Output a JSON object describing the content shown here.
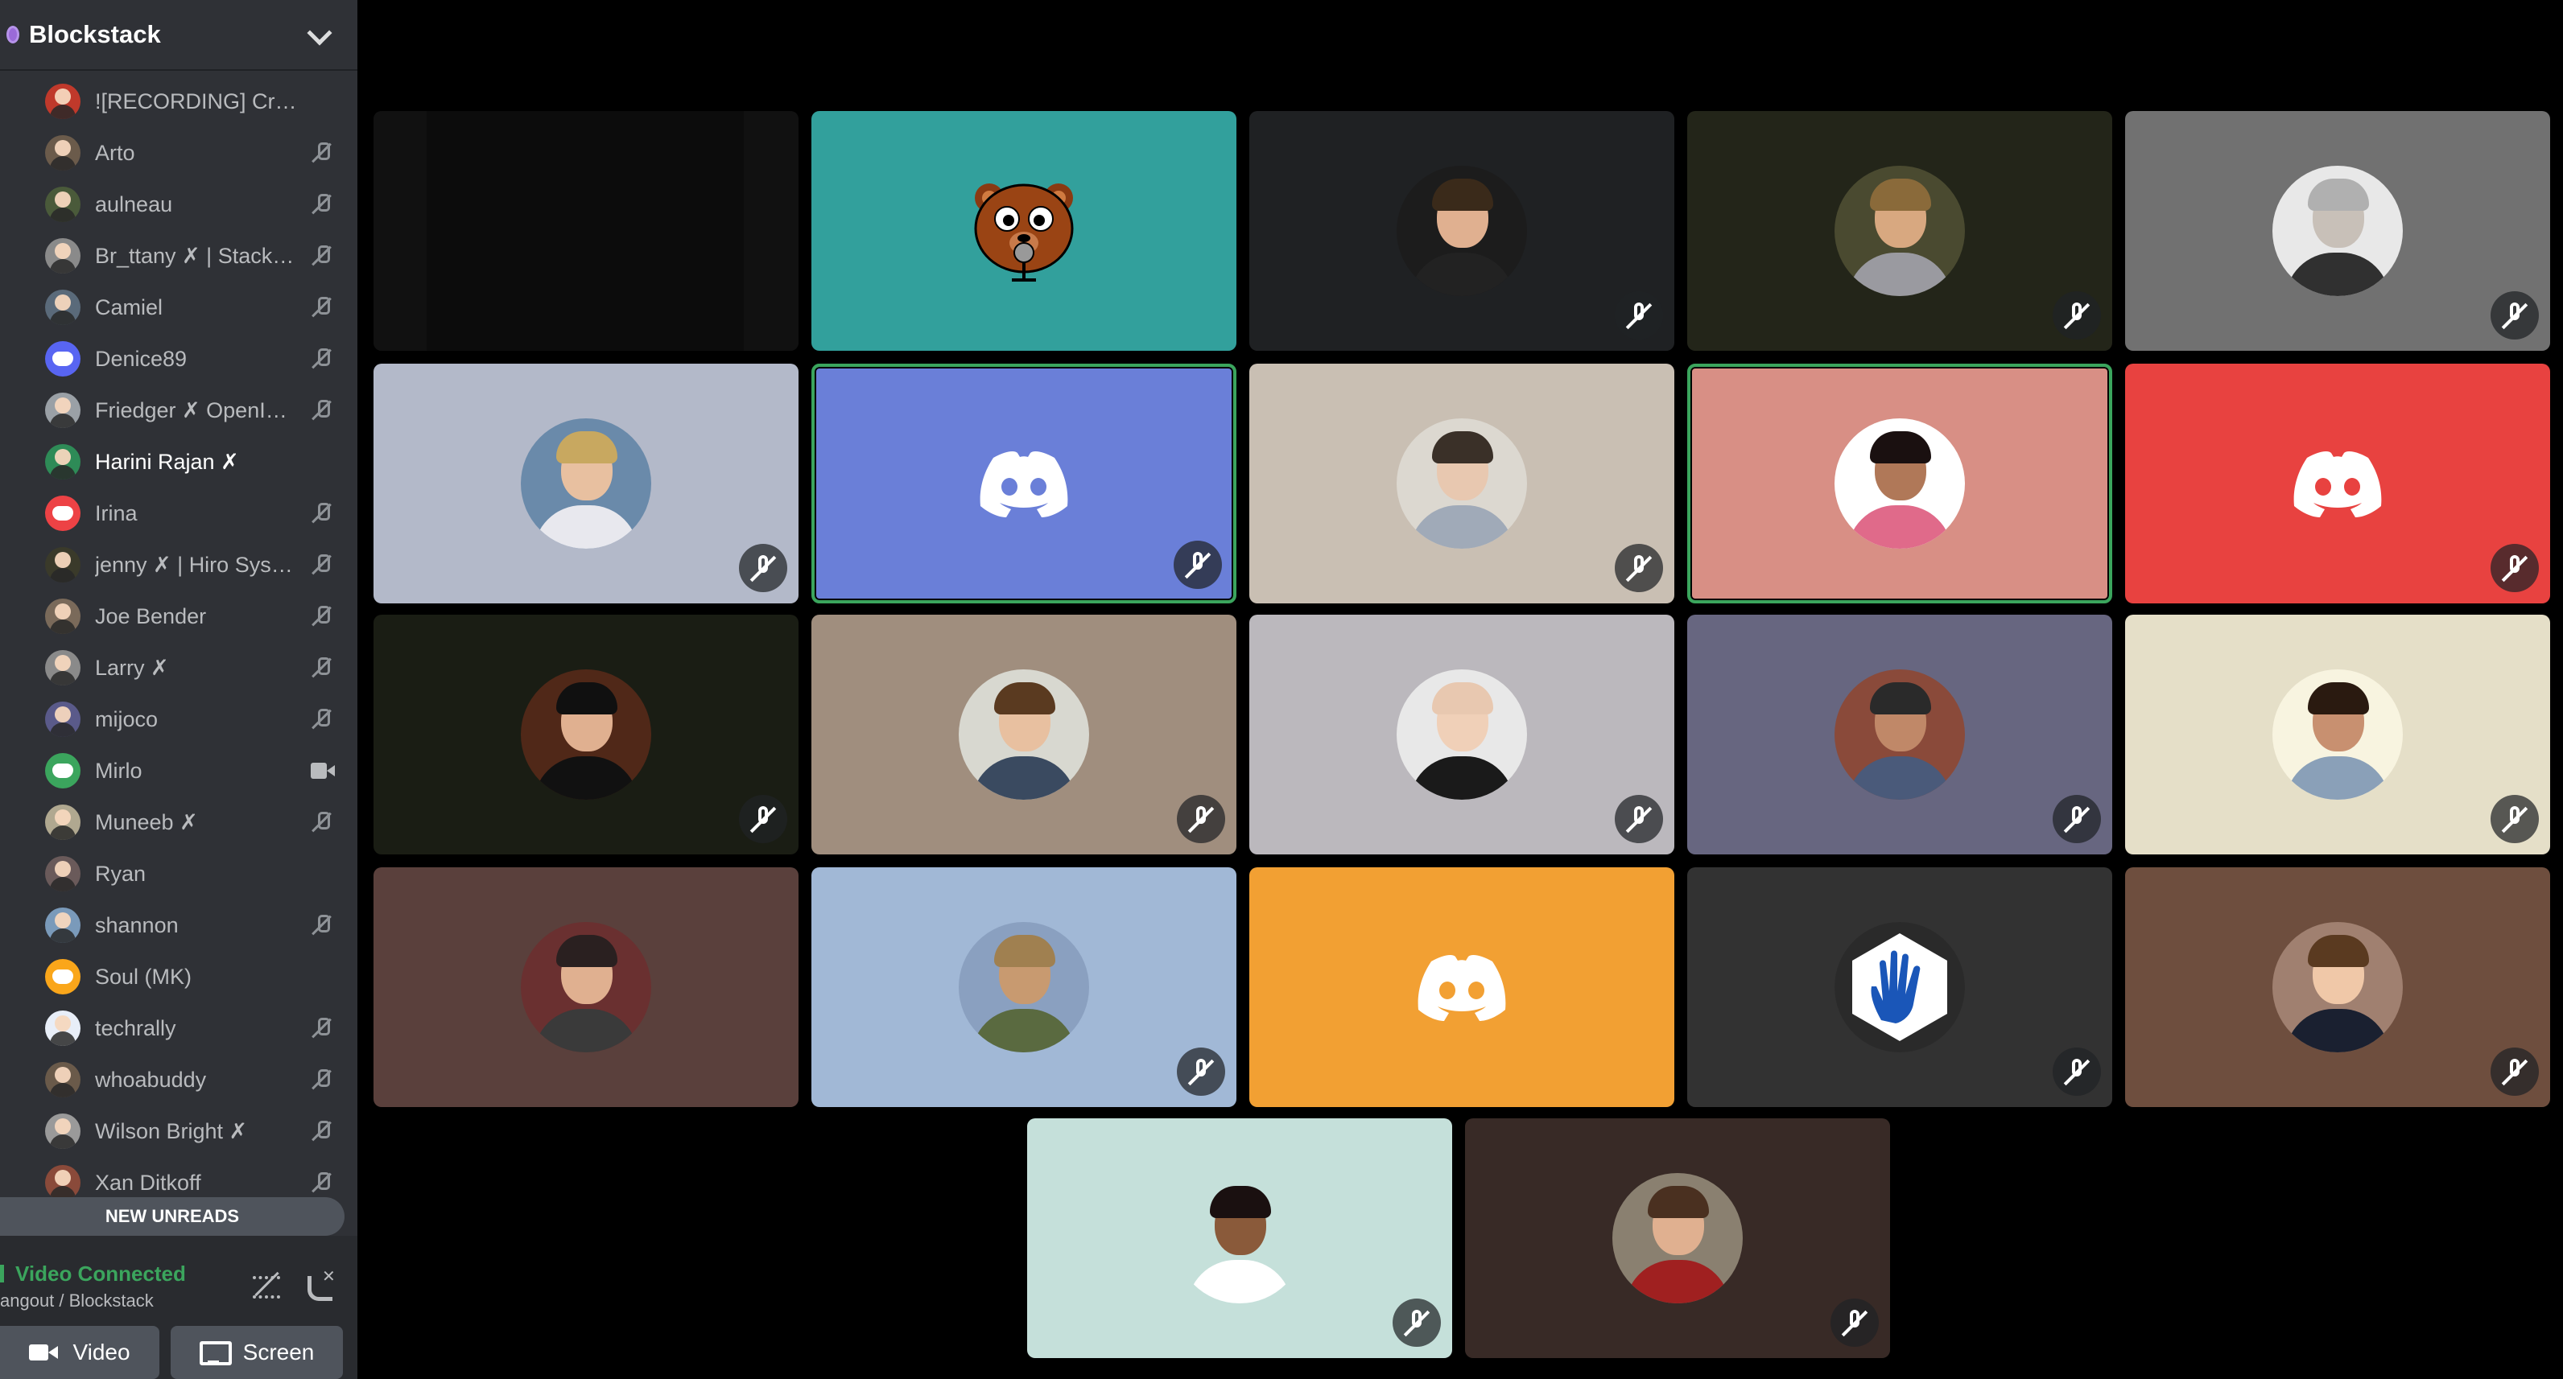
{
  "server": {
    "name": "Blockstack",
    "dropdown_icon": "chevron-down-icon"
  },
  "members": [
    {
      "name": "![RECORDING] Craig",
      "status": "none",
      "avatar_color": "#c0392b",
      "bright": false
    },
    {
      "name": "Arto",
      "status": "muted",
      "avatar_color": "#6b5b4b",
      "bright": false
    },
    {
      "name": "aulneau",
      "status": "muted",
      "avatar_color": "#4a5a3a",
      "bright": false
    },
    {
      "name": "Br_ttany ✗ | Stacks ...",
      "status": "muted",
      "avatar_color": "#8a8a8a",
      "bright": false
    },
    {
      "name": "Camiel",
      "status": "muted",
      "avatar_color": "#5a6a7a",
      "bright": false
    },
    {
      "name": "Denice89",
      "status": "muted",
      "avatar_color": "#5865f2",
      "bright": false,
      "discord": true
    },
    {
      "name": "Friedger ✗ OpenInt...",
      "status": "muted",
      "avatar_color": "#9aa0a6",
      "bright": false
    },
    {
      "name": "Harini Rajan ✗",
      "status": "none",
      "avatar_color": "#2e8b57",
      "bright": true
    },
    {
      "name": "Irina",
      "status": "muted",
      "avatar_color": "#ed4245",
      "bright": false,
      "discord": true
    },
    {
      "name": "jenny ✗ | Hiro Syste...",
      "status": "muted",
      "avatar_color": "#3a3a2a",
      "bright": false
    },
    {
      "name": "Joe Bender",
      "status": "muted",
      "avatar_color": "#7a6a5a",
      "bright": false
    },
    {
      "name": "Larry ✗",
      "status": "muted",
      "avatar_color": "#8a8a8a",
      "bright": false
    },
    {
      "name": "mijoco",
      "status": "muted",
      "avatar_color": "#5a5a8a",
      "bright": false
    },
    {
      "name": "Mirlo",
      "status": "camera",
      "avatar_color": "#3ba55d",
      "bright": false,
      "discord": true
    },
    {
      "name": "Muneeb ✗",
      "status": "muted",
      "avatar_color": "#b0a890",
      "bright": false
    },
    {
      "name": "Ryan",
      "status": "none",
      "avatar_color": "#6a5a5a",
      "bright": false
    },
    {
      "name": "shannon",
      "status": "muted",
      "avatar_color": "#7a9aba",
      "bright": false
    },
    {
      "name": "Soul (MK)",
      "status": "none",
      "avatar_color": "#faa61a",
      "bright": false,
      "discord": true
    },
    {
      "name": "techrally",
      "status": "muted",
      "avatar_color": "#e8eef8",
      "bright": false
    },
    {
      "name": "whoabuddy",
      "status": "muted",
      "avatar_color": "#6a5a4a",
      "bright": false
    },
    {
      "name": "Wilson Bright ✗",
      "status": "muted",
      "avatar_color": "#9a9a9a",
      "bright": false
    },
    {
      "name": "Xan Ditkoff",
      "status": "muted",
      "avatar_color": "#8a4a3a",
      "bright": false
    }
  ],
  "new_unreads": "NEW UNREADS",
  "voice": {
    "status": "Video Connected",
    "channel": "angout / Blockstack",
    "noise_icon": "noise-suppression-icon",
    "disconnect_icon": "disconnect-call-icon"
  },
  "buttons": {
    "video": "Video",
    "screen": "Screen"
  },
  "tiles": [
    {
      "kind": "camera",
      "bg": "#111111",
      "muted": false,
      "speaking": false
    },
    {
      "kind": "bear",
      "bg": "#32a09c",
      "muted": false,
      "speaking": false
    },
    {
      "kind": "photo",
      "bg": "#1f2123",
      "avatar_bg": "#1c1c1c",
      "skin": "#e0b090",
      "hair": "#3a2a1a",
      "shirt": "#222222",
      "muted": true,
      "speaking": false
    },
    {
      "kind": "photo",
      "bg": "#232519",
      "avatar_bg": "#4a4a30",
      "skin": "#d8a880",
      "hair": "#8a6a3a",
      "shirt": "#9a9aa0",
      "muted": true,
      "speaking": false
    },
    {
      "kind": "photo",
      "bg": "#717171",
      "avatar_bg": "#e8e8e8",
      "skin": "#c8c0b8",
      "hair": "#b0b0b0",
      "shirt": "#303030",
      "muted": true,
      "speaking": false
    },
    {
      "kind": "photo",
      "bg": "#b3b9c9",
      "avatar_bg": "#6a8aaa",
      "skin": "#e8c0a0",
      "hair": "#c8a860",
      "shirt": "#e8e8ee",
      "muted": true,
      "speaking": false
    },
    {
      "kind": "discord",
      "bg": "#6a7fd8",
      "muted": true,
      "speaking": true
    },
    {
      "kind": "photo",
      "bg": "#c9bfb3",
      "avatar_bg": "#dcd8d0",
      "skin": "#e8c8b0",
      "hair": "#3a3028",
      "shirt": "#a0aab8",
      "muted": true,
      "speaking": false
    },
    {
      "kind": "photo",
      "bg": "#d88f85",
      "avatar_bg": "#ffffff",
      "skin": "#b07858",
      "hair": "#1a1010",
      "shirt": "#e06a8a",
      "muted": false,
      "speaking": true
    },
    {
      "kind": "discord",
      "bg": "#e84240",
      "muted": true,
      "speaking": false
    },
    {
      "kind": "photo",
      "bg": "#1a1d14",
      "avatar_bg": "#502818",
      "skin": "#e0b090",
      "hair": "#101010",
      "shirt": "#111111",
      "muted": true,
      "speaking": false
    },
    {
      "kind": "photo",
      "bg": "#a08e7e",
      "avatar_bg": "#d8d8d0",
      "skin": "#e8c0a0",
      "hair": "#5a3a20",
      "shirt": "#3a4a60",
      "muted": true,
      "speaking": false
    },
    {
      "kind": "photo",
      "bg": "#bbb8bd",
      "avatar_bg": "#e8e8e8",
      "skin": "#f0d0b8",
      "hair": "#e8c8b0",
      "shirt": "#1a1a1a",
      "muted": true,
      "speaking": false
    },
    {
      "kind": "photo",
      "bg": "#676680",
      "avatar_bg": "#8a4a3a",
      "skin": "#c08868",
      "hair": "#2a2a2a",
      "shirt": "#4a5a7a",
      "muted": true,
      "speaking": false
    },
    {
      "kind": "photo",
      "bg": "#e5dfc8",
      "avatar_bg": "#f8f4e0",
      "skin": "#c89070",
      "hair": "#2a1a10",
      "shirt": "#8aa0b8",
      "muted": true,
      "speaking": false
    },
    {
      "kind": "photo",
      "bg": "#5a403c",
      "avatar_bg": "#6a3030",
      "skin": "#e0b090",
      "hair": "#2a2020",
      "shirt": "#3a3a3a",
      "muted": false,
      "speaking": false
    },
    {
      "kind": "photo",
      "bg": "#a1b8d6",
      "avatar_bg": "#8aa0c0",
      "skin": "#c89a70",
      "hair": "#a08050",
      "shirt": "#5a6a40",
      "muted": true,
      "speaking": false
    },
    {
      "kind": "discord",
      "bg": "#f2a033",
      "muted": false,
      "speaking": false
    },
    {
      "kind": "hand",
      "bg": "#323232",
      "muted": true,
      "speaking": false
    },
    {
      "kind": "photo",
      "bg": "#6e4e3e",
      "avatar_bg": "#a08070",
      "skin": "#f0c8a8",
      "hair": "#5a3a20",
      "shirt": "#1a2030",
      "muted": true,
      "speaking": false
    },
    {
      "kind": "photo",
      "bg": "#c5e0da",
      "avatar_bg": "#c5e0da",
      "skin": "#8a5a3a",
      "hair": "#1a1010",
      "shirt": "#ffffff",
      "muted": true,
      "speaking": false
    },
    {
      "kind": "photo",
      "bg": "#382a26",
      "avatar_bg": "#8a8070",
      "skin": "#e0b090",
      "hair": "#4a3020",
      "shirt": "#a02020",
      "muted": true,
      "speaking": false
    }
  ]
}
